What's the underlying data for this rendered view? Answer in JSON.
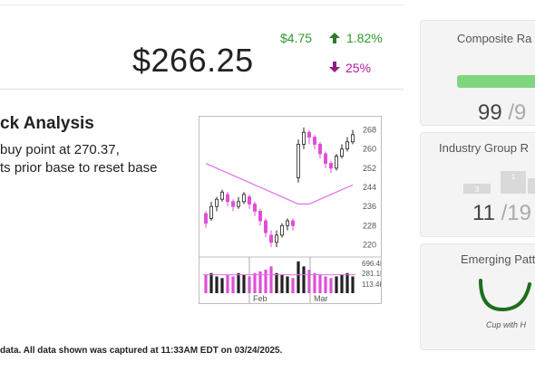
{
  "quote": {
    "price": "$266.25",
    "change_amount": "$4.75",
    "change_percent": "1.82%",
    "volume_change_percent": "25%",
    "up_color": "#2f9a2f",
    "down_color": "#b5179e"
  },
  "analysis": {
    "heading": "ck Analysis",
    "line1": " buy point at 270.37,",
    "line2": "ts prior base to reset base"
  },
  "chart": {
    "price_ticks": [
      "268",
      "260",
      "252",
      "244",
      "236",
      "228",
      "220"
    ],
    "volume_ticks": [
      "696.4K",
      "281.1K",
      "113.4K"
    ],
    "months": [
      "Feb",
      "Mar"
    ]
  },
  "footer": {
    "text": " data. All data shown was captured at 11:33AM EDT on 03/24/2025."
  },
  "composite": {
    "title": "Composite Ra",
    "value": "99",
    "of": " /9",
    "bar_color": "#7fd67f"
  },
  "industry_group": {
    "title": "Industry Group R",
    "rank": "11",
    "of": " /19",
    "bars": [
      "3",
      "1",
      ""
    ]
  },
  "emerging": {
    "title": "Emerging Patt",
    "pattern": "Cup with H"
  },
  "chart_data": {
    "type": "bar",
    "price_ylim": [
      216,
      272
    ],
    "candles": [
      {
        "o": 229,
        "c": 233,
        "h": 234,
        "l": 227,
        "up": false
      },
      {
        "o": 231,
        "c": 236,
        "h": 238,
        "l": 230,
        "up": true
      },
      {
        "o": 236,
        "c": 239,
        "h": 240,
        "l": 234,
        "up": true
      },
      {
        "o": 239,
        "c": 242,
        "h": 243,
        "l": 238,
        "up": true
      },
      {
        "o": 241,
        "c": 238,
        "h": 242,
        "l": 236,
        "up": false
      },
      {
        "o": 238,
        "c": 236,
        "h": 239,
        "l": 234,
        "up": false
      },
      {
        "o": 236,
        "c": 238,
        "h": 240,
        "l": 235,
        "up": true
      },
      {
        "o": 238,
        "c": 241,
        "h": 242,
        "l": 237,
        "up": true
      },
      {
        "o": 240,
        "c": 237,
        "h": 241,
        "l": 235,
        "up": false
      },
      {
        "o": 237,
        "c": 234,
        "h": 238,
        "l": 232,
        "up": false
      },
      {
        "o": 234,
        "c": 230,
        "h": 235,
        "l": 228,
        "up": false
      },
      {
        "o": 230,
        "c": 225,
        "h": 231,
        "l": 223,
        "up": false
      },
      {
        "o": 224,
        "c": 221,
        "h": 226,
        "l": 219,
        "up": false
      },
      {
        "o": 221,
        "c": 224,
        "h": 226,
        "l": 219,
        "up": true
      },
      {
        "o": 224,
        "c": 228,
        "h": 229,
        "l": 223,
        "up": true
      },
      {
        "o": 228,
        "c": 230,
        "h": 231,
        "l": 226,
        "up": true
      },
      {
        "o": 230,
        "c": 228,
        "h": 231,
        "l": 226,
        "up": false
      },
      {
        "o": 248,
        "c": 262,
        "h": 264,
        "l": 246,
        "up": true
      },
      {
        "o": 262,
        "c": 267,
        "h": 269,
        "l": 260,
        "up": true
      },
      {
        "o": 267,
        "c": 265,
        "h": 268,
        "l": 262,
        "up": false
      },
      {
        "o": 265,
        "c": 262,
        "h": 266,
        "l": 260,
        "up": false
      },
      {
        "o": 262,
        "c": 258,
        "h": 263,
        "l": 256,
        "up": false
      },
      {
        "o": 258,
        "c": 254,
        "h": 259,
        "l": 252,
        "up": false
      },
      {
        "o": 254,
        "c": 252,
        "h": 255,
        "l": 250,
        "up": false
      },
      {
        "o": 252,
        "c": 257,
        "h": 258,
        "l": 251,
        "up": true
      },
      {
        "o": 257,
        "c": 260,
        "h": 262,
        "l": 256,
        "up": true
      },
      {
        "o": 260,
        "c": 263,
        "h": 265,
        "l": 259,
        "up": true
      },
      {
        "o": 263,
        "c": 266,
        "h": 268,
        "l": 262,
        "up": true
      }
    ],
    "moving_average": [
      254,
      253,
      252,
      251,
      250,
      249,
      248,
      247,
      246,
      245,
      244,
      243,
      242,
      241,
      240,
      239,
      238,
      237,
      237,
      237,
      238,
      239,
      240,
      241,
      242,
      243,
      244,
      245
    ],
    "volumes": [
      0.55,
      0.6,
      0.5,
      0.45,
      0.55,
      0.5,
      0.6,
      0.55,
      0.5,
      0.6,
      0.65,
      0.7,
      0.8,
      0.6,
      0.55,
      0.5,
      0.45,
      0.95,
      0.8,
      0.7,
      0.6,
      0.55,
      0.5,
      0.45,
      0.5,
      0.55,
      0.6,
      0.5
    ],
    "volume_avg": 0.55
  }
}
